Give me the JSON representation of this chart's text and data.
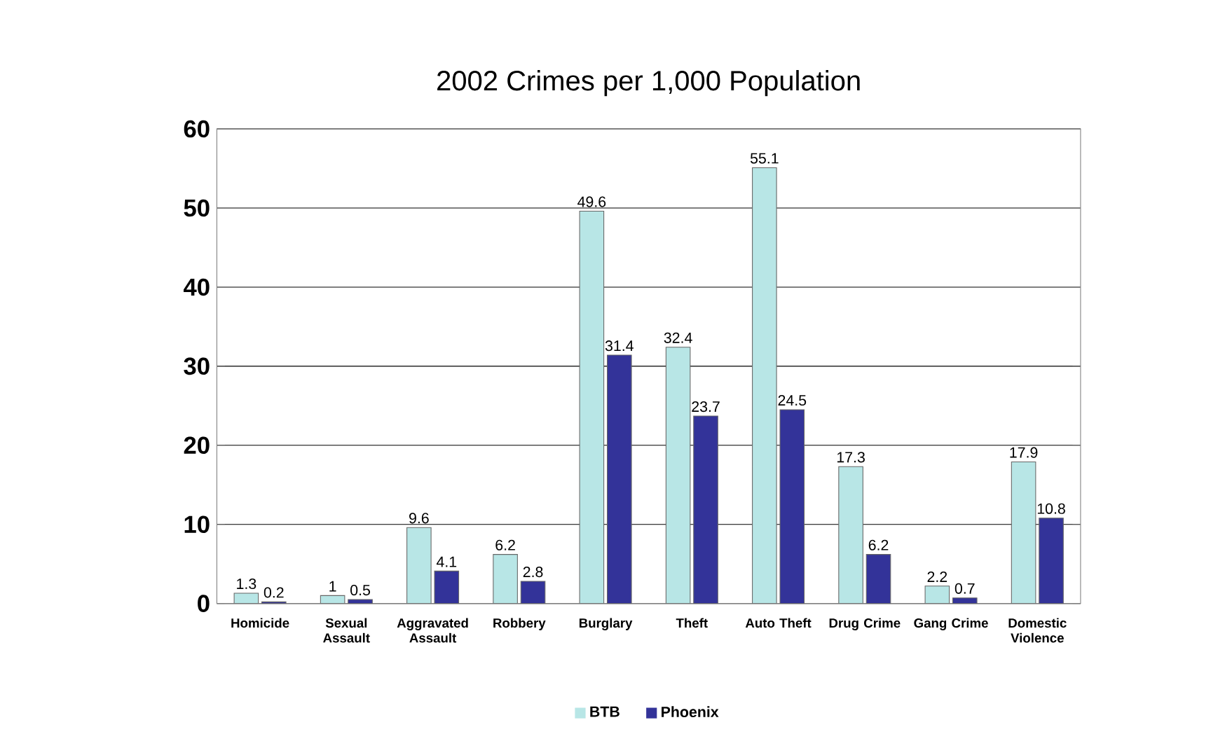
{
  "chart_data": {
    "type": "bar",
    "title": "2002 Crimes per 1,000 Population",
    "categories": [
      "Homicide",
      "Sexual Assault",
      "Aggravated Assault",
      "Robbery",
      "Burglary",
      "Theft",
      "Auto Theft",
      "Drug Crime",
      "Gang Crime",
      "Domestic Violence"
    ],
    "series": [
      {
        "name": "BTB",
        "color": "#b8e6e6",
        "values": [
          1.3,
          1,
          9.6,
          6.2,
          49.6,
          32.4,
          55.1,
          17.3,
          2.2,
          17.9
        ]
      },
      {
        "name": "Phoenix",
        "color": "#333399",
        "values": [
          0.2,
          0.5,
          4.1,
          2.8,
          31.4,
          23.7,
          24.5,
          6.2,
          0.7,
          10.8
        ]
      }
    ],
    "ylim": [
      0,
      60
    ],
    "yticks": [
      0,
      10,
      20,
      30,
      40,
      50,
      60
    ],
    "grid": "y",
    "legend": "bottom",
    "data_labels": true
  }
}
